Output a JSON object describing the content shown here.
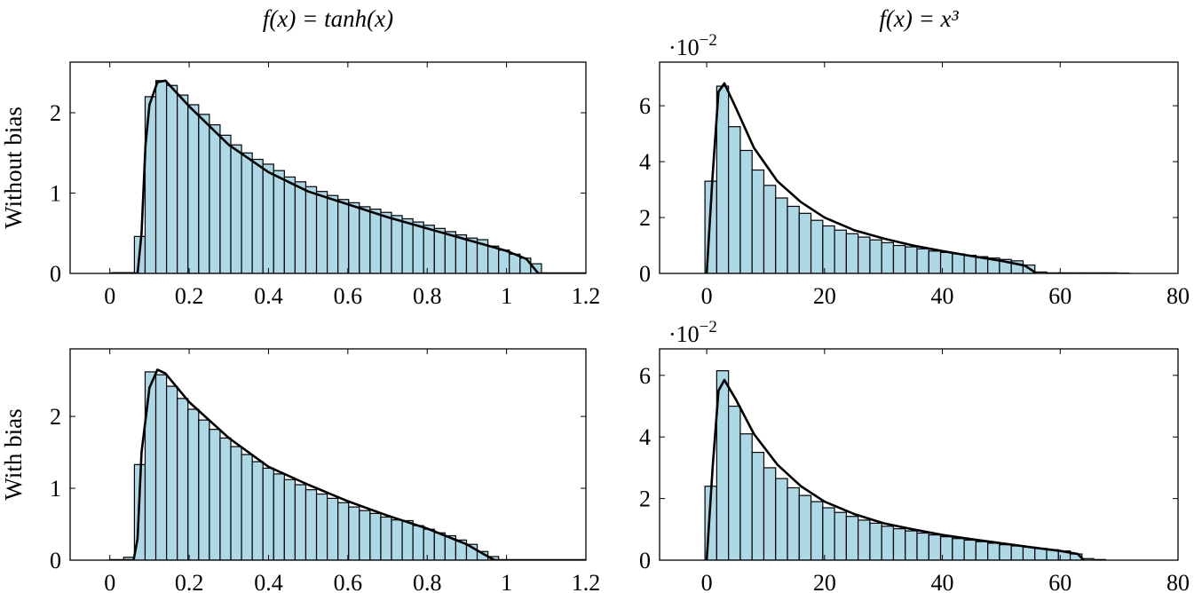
{
  "chart_data": [
    {
      "type": "histogram",
      "title": "f(x) = tanh(x)",
      "ylabel": "Without bias",
      "color": "#add8e6",
      "bins": [
        0.008,
        0.035,
        0.062,
        0.089,
        0.116,
        0.143,
        0.17,
        0.197,
        0.224,
        0.251,
        0.278,
        0.305,
        0.332,
        0.359,
        0.386,
        0.413,
        0.44,
        0.467,
        0.494,
        0.521,
        0.548,
        0.575,
        0.602,
        0.629,
        0.656,
        0.683,
        0.71,
        0.737,
        0.764,
        0.791,
        0.818,
        0.845,
        0.872,
        0.899,
        0.926,
        0.953,
        0.98,
        1.007,
        1.034,
        1.061,
        1.088
      ],
      "counts": [
        0.01,
        0.01,
        0.46,
        2.2,
        2.4,
        2.34,
        2.22,
        2.1,
        1.98,
        1.85,
        1.72,
        1.6,
        1.5,
        1.42,
        1.36,
        1.28,
        1.2,
        1.14,
        1.08,
        1.02,
        0.97,
        0.92,
        0.88,
        0.83,
        0.8,
        0.76,
        0.72,
        0.68,
        0.64,
        0.6,
        0.56,
        0.52,
        0.48,
        0.44,
        0.42,
        0.34,
        0.29,
        0.24,
        0.19,
        0.12
      ],
      "curve": {
        "color": "#000000",
        "x": [
          0,
          0.07,
          0.08,
          0.09,
          0.1,
          0.12,
          0.14,
          0.2,
          0.3,
          0.4,
          0.5,
          0.6,
          0.7,
          0.8,
          0.9,
          1.0,
          1.05,
          1.08,
          1.2
        ],
        "y": [
          0,
          0,
          0.5,
          1.6,
          2.1,
          2.38,
          2.4,
          2.08,
          1.6,
          1.26,
          1.02,
          0.86,
          0.7,
          0.56,
          0.42,
          0.28,
          0.18,
          0,
          0
        ]
      },
      "xlim": [
        -0.1,
        1.2
      ],
      "ylim": [
        0,
        2.63
      ],
      "xticks": [
        0,
        0.2,
        0.4,
        0.6,
        0.8,
        1,
        1.2
      ],
      "yticks": [
        0,
        1,
        2
      ]
    },
    {
      "type": "histogram",
      "title": "f(x) = x³",
      "y_multiplier": {
        "base": "·10",
        "exponent": "−2"
      },
      "color": "#add8e6",
      "bins": [
        -0.3,
        1.7,
        3.7,
        5.7,
        7.7,
        9.7,
        11.7,
        13.7,
        15.7,
        17.7,
        19.7,
        21.7,
        23.7,
        25.7,
        27.7,
        29.7,
        31.7,
        33.7,
        35.7,
        37.7,
        39.7,
        41.7,
        43.7,
        45.7,
        47.7,
        49.7,
        51.7,
        53.7,
        55.7,
        57.7,
        59.7,
        61.7,
        63.7,
        65.7,
        67.7,
        69.7,
        71.7
      ],
      "counts": [
        3.3,
        6.7,
        5.25,
        4.4,
        3.7,
        3.15,
        2.7,
        2.4,
        2.15,
        1.9,
        1.7,
        1.55,
        1.42,
        1.3,
        1.2,
        1.1,
        1.0,
        0.95,
        0.88,
        0.8,
        0.75,
        0.7,
        0.65,
        0.6,
        0.55,
        0.5,
        0.45,
        0.3,
        0.05,
        0.02,
        0.02,
        0.02,
        0.02,
        0.02,
        0.02,
        0.01
      ],
      "curve": {
        "color": "#000000",
        "x": [
          0,
          1,
          2,
          3,
          5,
          8,
          12,
          16,
          20,
          25,
          30,
          35,
          40,
          45,
          50,
          54,
          56
        ],
        "y": [
          0,
          3.5,
          6.5,
          6.8,
          5.9,
          4.5,
          3.3,
          2.55,
          2.0,
          1.55,
          1.25,
          1.0,
          0.8,
          0.62,
          0.45,
          0.28,
          0
        ]
      },
      "xlim": [
        -8,
        80
      ],
      "ylim": [
        0,
        7.56
      ],
      "xticks": [
        0,
        20,
        40,
        60,
        80
      ],
      "yticks": [
        0,
        2,
        4,
        6
      ]
    },
    {
      "type": "histogram",
      "ylabel": "With bias",
      "color": "#add8e6",
      "bins": [
        0.008,
        0.035,
        0.062,
        0.089,
        0.116,
        0.143,
        0.17,
        0.197,
        0.224,
        0.251,
        0.278,
        0.305,
        0.332,
        0.359,
        0.386,
        0.413,
        0.44,
        0.467,
        0.494,
        0.521,
        0.548,
        0.575,
        0.602,
        0.629,
        0.656,
        0.683,
        0.71,
        0.737,
        0.764,
        0.791,
        0.818,
        0.845,
        0.872,
        0.899,
        0.926,
        0.953,
        0.98
      ],
      "counts": [
        0,
        0.04,
        1.33,
        2.62,
        2.58,
        2.42,
        2.25,
        2.1,
        1.95,
        1.82,
        1.7,
        1.58,
        1.47,
        1.37,
        1.28,
        1.2,
        1.12,
        1.05,
        0.98,
        0.92,
        0.86,
        0.8,
        0.74,
        0.69,
        0.65,
        0.6,
        0.56,
        0.55,
        0.48,
        0.43,
        0.38,
        0.34,
        0.28,
        0.22,
        0.12,
        0.05
      ],
      "curve": {
        "color": "#000000",
        "x": [
          0,
          0.06,
          0.07,
          0.08,
          0.1,
          0.12,
          0.14,
          0.2,
          0.3,
          0.4,
          0.5,
          0.6,
          0.7,
          0.8,
          0.9,
          0.95,
          0.97,
          1.2
        ],
        "y": [
          0,
          0,
          0.3,
          1.5,
          2.4,
          2.65,
          2.6,
          2.2,
          1.7,
          1.3,
          1.05,
          0.82,
          0.62,
          0.44,
          0.22,
          0.06,
          0,
          0
        ]
      },
      "xlim": [
        -0.1,
        1.2
      ],
      "ylim": [
        0,
        2.94
      ],
      "xticks": [
        0,
        0.2,
        0.4,
        0.6,
        0.8,
        1,
        1.2
      ],
      "yticks": [
        0,
        1,
        2
      ]
    },
    {
      "type": "histogram",
      "y_multiplier": {
        "base": "·10",
        "exponent": "−2"
      },
      "color": "#add8e6",
      "bins": [
        -0.3,
        1.7,
        3.7,
        5.7,
        7.7,
        9.7,
        11.7,
        13.7,
        15.7,
        17.7,
        19.7,
        21.7,
        23.7,
        25.7,
        27.7,
        29.7,
        31.7,
        33.7,
        35.7,
        37.7,
        39.7,
        41.7,
        43.7,
        45.7,
        47.7,
        49.7,
        51.7,
        53.7,
        55.7,
        57.7,
        59.7,
        61.7,
        63.7,
        65.7,
        67.7
      ],
      "counts": [
        2.4,
        6.15,
        5.0,
        4.1,
        3.5,
        3.0,
        2.65,
        2.35,
        2.1,
        1.9,
        1.7,
        1.55,
        1.42,
        1.3,
        1.2,
        1.1,
        1.02,
        0.95,
        0.88,
        0.82,
        0.76,
        0.7,
        0.65,
        0.6,
        0.55,
        0.5,
        0.46,
        0.42,
        0.38,
        0.34,
        0.3,
        0.2,
        0.05,
        0.02
      ],
      "curve": {
        "color": "#000000",
        "x": [
          0,
          1,
          2,
          3,
          5,
          8,
          12,
          16,
          20,
          25,
          30,
          35,
          40,
          45,
          50,
          55,
          60,
          63,
          64
        ],
        "y": [
          0,
          3,
          5.5,
          5.85,
          5.2,
          4.1,
          3.1,
          2.4,
          1.9,
          1.5,
          1.2,
          1.0,
          0.82,
          0.68,
          0.55,
          0.42,
          0.3,
          0.2,
          0
        ]
      },
      "xlim": [
        -8,
        80
      ],
      "ylim": [
        0,
        6.86
      ],
      "xticks": [
        0,
        20,
        40,
        60,
        80
      ],
      "yticks": [
        0,
        2,
        4,
        6
      ]
    }
  ]
}
